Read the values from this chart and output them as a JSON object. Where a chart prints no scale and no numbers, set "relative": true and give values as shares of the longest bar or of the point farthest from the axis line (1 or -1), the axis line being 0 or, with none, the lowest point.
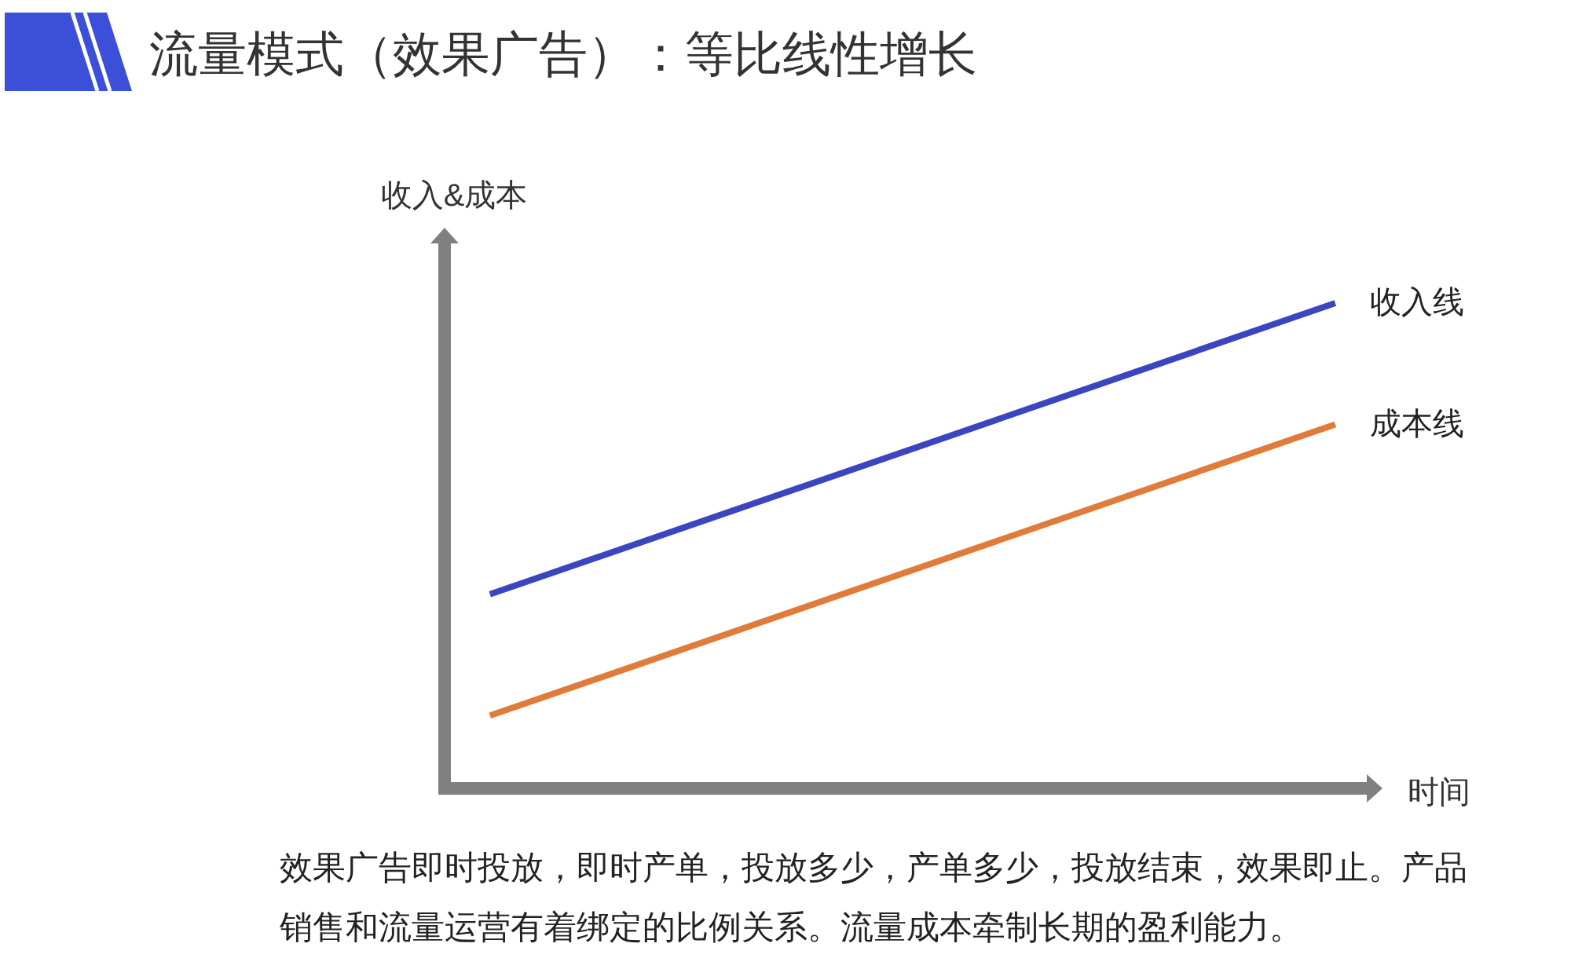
{
  "chart_data": {
    "type": "line",
    "title": "流量模式（效果广告）：等比线性增长",
    "xlabel": "时间",
    "ylabel": "收入&成本",
    "relative": true,
    "categories": [
      null,
      null
    ],
    "series": [
      {
        "name": "收入线",
        "color": "#3b45c0",
        "values": [
          0.4,
          1
        ]
      },
      {
        "name": "成本线",
        "color": "#e07b3a",
        "values": [
          0.15,
          0.75
        ]
      }
    ],
    "annotations": [
      "效果广告即时投放，即时产单，投放多少，产单多少，投放结束，效果即止。产品销售和流量运营有着绑定的比例关系。流量成本牵制长期的盈利能力。"
    ],
    "legend": false,
    "marker": "none",
    "line_style": "solid"
  }
}
